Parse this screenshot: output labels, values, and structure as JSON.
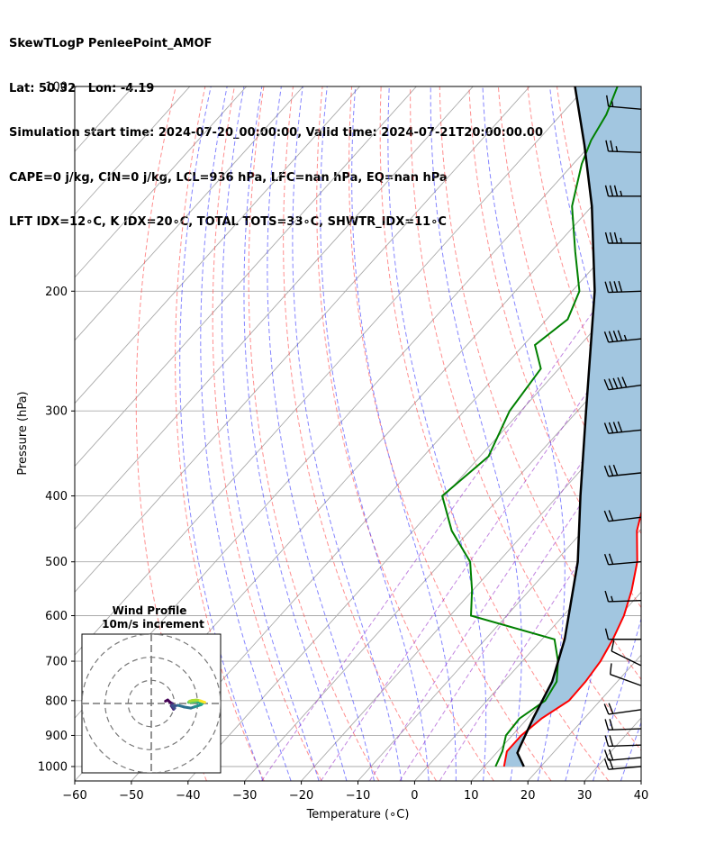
{
  "header": {
    "line1": "SkewTLogP PenleePoint_AMOF",
    "line2": "Lat: 50.32   Lon: -4.19",
    "line3": "Simulation start time: 2024-07-20_00:00:00, Valid time: 2024-07-21T20:00:00.00",
    "line4": "CAPE=0 j/kg, CIN=0 j/kg, LCL=936 hPa, LFC=nan hPa, EQ=nan hPa",
    "line5": "LFT IDX=12∘C, K IDX=20∘C, TOTAL TOTS=33∘C, SHWTR_IDX=11∘C"
  },
  "chart_data": {
    "type": "line",
    "subtype": "skew-t log-p",
    "xlabel": "Temperature (∘C)",
    "ylabel": "Pressure (hPa)",
    "xlim": [
      -60,
      40
    ],
    "ylim": [
      1050,
      100
    ],
    "y_scale": "log",
    "x_ticks": [
      "−60",
      "−50",
      "−40",
      "−30",
      "−20",
      "−10",
      "0",
      "10",
      "20",
      "30",
      "40"
    ],
    "y_ticks": [
      "100",
      "200",
      "300",
      "400",
      "500",
      "600",
      "700",
      "800",
      "900",
      "1000"
    ],
    "grid": true,
    "series": [
      {
        "color": "#ff0000",
        "points": [
          [
            13.5,
            1000
          ],
          [
            11.6,
            950
          ],
          [
            11.6,
            900
          ],
          [
            12.5,
            850
          ],
          [
            14.5,
            800
          ],
          [
            14.4,
            750
          ],
          [
            13.8,
            700
          ],
          [
            12.5,
            650
          ],
          [
            10.7,
            600
          ],
          [
            8,
            550
          ],
          [
            4.5,
            500
          ],
          [
            -0.5,
            450
          ],
          [
            -4.5,
            400
          ],
          [
            -10,
            350
          ],
          [
            -16,
            300
          ],
          [
            -22.5,
            260
          ],
          [
            -29,
            240
          ],
          [
            -32.3,
            220
          ],
          [
            -37.5,
            200
          ],
          [
            -42,
            175
          ],
          [
            -45.5,
            150
          ],
          [
            -50.5,
            130
          ],
          [
            -54,
            120
          ],
          [
            -54.3,
            115
          ],
          [
            -54.3,
            110
          ],
          [
            -55,
            100
          ]
        ]
      },
      {
        "color": "#008000",
        "points": [
          [
            12,
            1000
          ],
          [
            10.8,
            950
          ],
          [
            8.9,
            900
          ],
          [
            8.6,
            850
          ],
          [
            10.3,
            800
          ],
          [
            9.3,
            750
          ],
          [
            6.3,
            700
          ],
          [
            2.2,
            650
          ],
          [
            -16.3,
            600
          ],
          [
            -20.2,
            550
          ],
          [
            -25,
            500
          ],
          [
            -33.2,
            450
          ],
          [
            -40.4,
            400
          ],
          [
            -38.5,
            350
          ],
          [
            -42,
            300
          ],
          [
            -43.2,
            260
          ],
          [
            -48,
            240
          ],
          [
            -46.3,
            220
          ],
          [
            -48.7,
            200
          ],
          [
            -55.7,
            175
          ],
          [
            -63.5,
            150
          ],
          [
            -68.5,
            130
          ],
          [
            -70.6,
            120
          ],
          [
            -72,
            110
          ],
          [
            -74.5,
            100
          ]
        ]
      },
      {
        "color": "#000000",
        "points": [
          [
            17,
            1000
          ],
          [
            13.7,
            955
          ],
          [
            13.2,
            936
          ],
          [
            11,
            850
          ],
          [
            8.5,
            750
          ],
          [
            4,
            650
          ],
          [
            -6,
            500
          ],
          [
            -16,
            400
          ],
          [
            -28.5,
            300
          ],
          [
            -46,
            200
          ],
          [
            -52.5,
            175
          ],
          [
            -60,
            150
          ],
          [
            -71,
            122
          ],
          [
            -82,
            100
          ]
        ]
      }
    ],
    "wind_barbs": [
      {
        "p": 1000,
        "speed_kt": 20,
        "dir_deg": 265
      },
      {
        "p": 970,
        "speed_kt": 20,
        "dir_deg": 265
      },
      {
        "p": 930,
        "speed_kt": 20,
        "dir_deg": 268
      },
      {
        "p": 880,
        "speed_kt": 20,
        "dir_deg": 268
      },
      {
        "p": 825,
        "speed_kt": 20,
        "dir_deg": 262
      },
      {
        "p": 760,
        "speed_kt": 10,
        "dir_deg": 290
      },
      {
        "p": 710,
        "speed_kt": 10,
        "dir_deg": 296
      },
      {
        "p": 650,
        "speed_kt": 10,
        "dir_deg": 270
      },
      {
        "p": 570,
        "speed_kt": 15,
        "dir_deg": 268
      },
      {
        "p": 500,
        "speed_kt": 20,
        "dir_deg": 265
      },
      {
        "p": 430,
        "speed_kt": 20,
        "dir_deg": 263
      },
      {
        "p": 370,
        "speed_kt": 30,
        "dir_deg": 264
      },
      {
        "p": 320,
        "speed_kt": 40,
        "dir_deg": 264
      },
      {
        "p": 275,
        "speed_kt": 50,
        "dir_deg": 262
      },
      {
        "p": 235,
        "speed_kt": 45,
        "dir_deg": 264
      },
      {
        "p": 200,
        "speed_kt": 40,
        "dir_deg": 268
      },
      {
        "p": 170,
        "speed_kt": 35,
        "dir_deg": 270
      },
      {
        "p": 145,
        "speed_kt": 35,
        "dir_deg": 270
      },
      {
        "p": 125,
        "speed_kt": 25,
        "dir_deg": 272
      },
      {
        "p": 108,
        "speed_kt": 15,
        "dir_deg": 275
      }
    ],
    "hodograph": {
      "title_line1": "Wind Profile",
      "title_line2": "10m/s increment",
      "ring_increment_ms": 10,
      "range_ms": 30,
      "points_uv": [
        [
          -4,
          1
        ],
        [
          -3,
          1.5
        ],
        [
          -2,
          0.5
        ],
        [
          -1,
          0
        ],
        [
          -1.5,
          -1
        ],
        [
          -0.5,
          -2.5
        ],
        [
          0,
          -2
        ],
        [
          -1,
          -1
        ],
        [
          0,
          -1
        ],
        [
          1.5,
          -0.8
        ],
        [
          4,
          -1.5
        ],
        [
          7,
          -2
        ],
        [
          8.5,
          -1.5
        ],
        [
          10,
          -1
        ],
        [
          11.5,
          -0.5
        ],
        [
          12,
          0
        ],
        [
          10.5,
          0.5
        ],
        [
          9,
          0.8
        ],
        [
          7.5,
          0.5
        ],
        [
          6,
          0.5
        ],
        [
          6.5,
          1
        ],
        [
          7.5,
          1.3
        ],
        [
          9.5,
          1.5
        ],
        [
          11,
          1.2
        ],
        [
          12,
          0.8
        ],
        [
          13,
          0.5
        ]
      ]
    },
    "colors": {
      "parcel_shade": "#a2c6e0",
      "dry_adiabat": "#ff4444",
      "moist_adiabat": "#3333ff",
      "mixing_ratio": "#9933cc",
      "isotherm": "#aaaaaa"
    }
  }
}
